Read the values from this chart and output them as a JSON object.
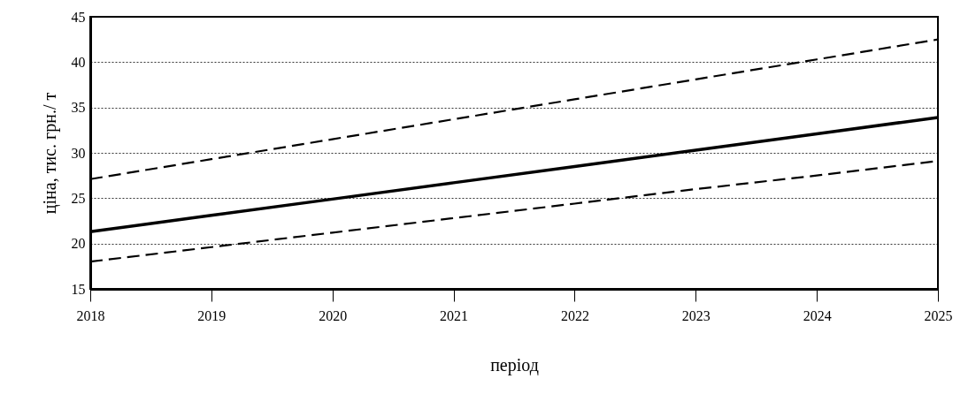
{
  "chart_data": {
    "type": "line",
    "xlabel": "період",
    "ylabel": "ціна, тис. грн./ т",
    "categories": [
      "2018",
      "2019",
      "2020",
      "2021",
      "2022",
      "2023",
      "2024",
      "2025"
    ],
    "series": [
      {
        "color": "#000000",
        "line_style": "dashed",
        "values": [
          27.1,
          29.3,
          31.5,
          33.7,
          35.9,
          38.1,
          40.3,
          42.5
        ]
      },
      {
        "color": "#000000",
        "line_style": "solid",
        "values": [
          21.3,
          23.1,
          24.9,
          26.7,
          28.5,
          30.3,
          32.1,
          33.9
        ]
      },
      {
        "color": "#000000",
        "line_style": "dashed",
        "values": [
          18.0,
          19.6,
          21.2,
          22.8,
          24.4,
          26.0,
          27.5,
          29.1
        ]
      }
    ],
    "ylim": [
      15,
      45
    ],
    "yticks": [
      15,
      20,
      25,
      30,
      35,
      40,
      45
    ],
    "grid": "y",
    "marker": "none"
  }
}
